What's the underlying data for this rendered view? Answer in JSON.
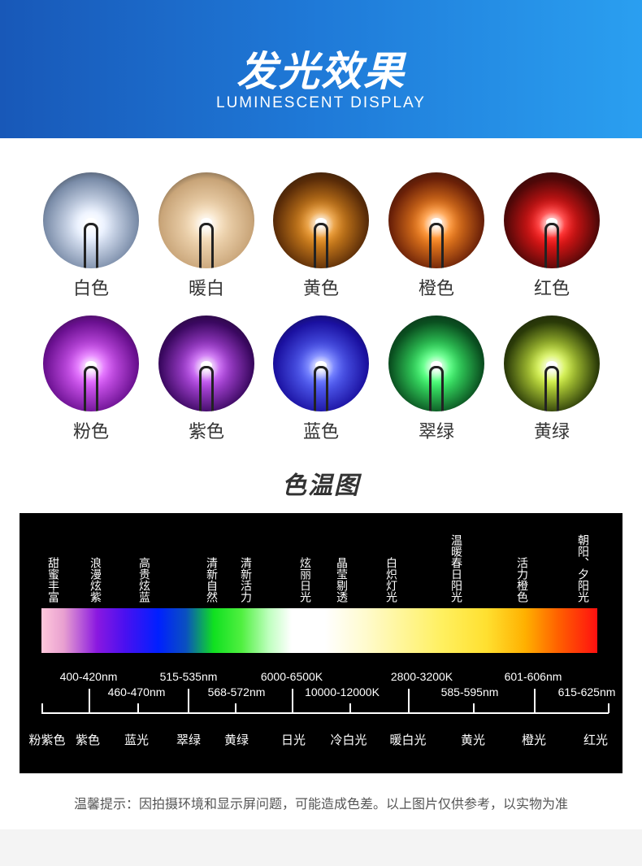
{
  "header": {
    "title": "发光效果",
    "subtitle": "LUMINESCENT DISPLAY"
  },
  "leds": [
    {
      "label": "白色",
      "color": "#e8f0ff",
      "glow": "#7a8ca8"
    },
    {
      "label": "暖白",
      "color": "#f5dcb8",
      "glow": "#c8a478"
    },
    {
      "label": "黄色",
      "color": "#e89020",
      "glow": "#5a2c08"
    },
    {
      "label": "橙色",
      "color": "#ff8a20",
      "glow": "#6a2008"
    },
    {
      "label": "红色",
      "color": "#ff1818",
      "glow": "#500808"
    },
    {
      "label": "粉色",
      "color": "#e060ff",
      "glow": "#6a1090"
    },
    {
      "label": "紫色",
      "color": "#c050f0",
      "glow": "#3a0860"
    },
    {
      "label": "蓝色",
      "color": "#5a6aff",
      "glow": "#1a10a0"
    },
    {
      "label": "翠绿",
      "color": "#40ff70",
      "glow": "#0a5020"
    },
    {
      "label": "黄绿",
      "color": "#d0f040",
      "glow": "#2a3a08"
    }
  ],
  "section_title": "色温图",
  "spectrum": {
    "descriptions": [
      "甜蜜丰富",
      "浪漫炫紫",
      "高贵炫蓝",
      "清新自然",
      "清新活力",
      "炫丽日光",
      "晶莹剔透",
      "白炽灯光",
      "温暖春日阳光",
      "活力橙色",
      "朝阳、夕阳光"
    ],
    "top_labels": [
      "400-420nm",
      "515-535nm",
      "6000-6500K",
      "2800-3200K",
      "601-606nm"
    ],
    "mid_labels": [
      "460-470nm",
      "568-572nm",
      "10000-12000K",
      "585-595nm",
      "615-625nm"
    ],
    "names": [
      "粉紫色",
      "紫色",
      "蓝光",
      "翠绿",
      "黄绿",
      "日光",
      "冷白光",
      "暖白光",
      "黄光",
      "橙光",
      "红光"
    ]
  },
  "note": "温馨提示：因拍摄环境和显示屏问题，可能造成色差。以上图片仅供参考，以实物为准"
}
